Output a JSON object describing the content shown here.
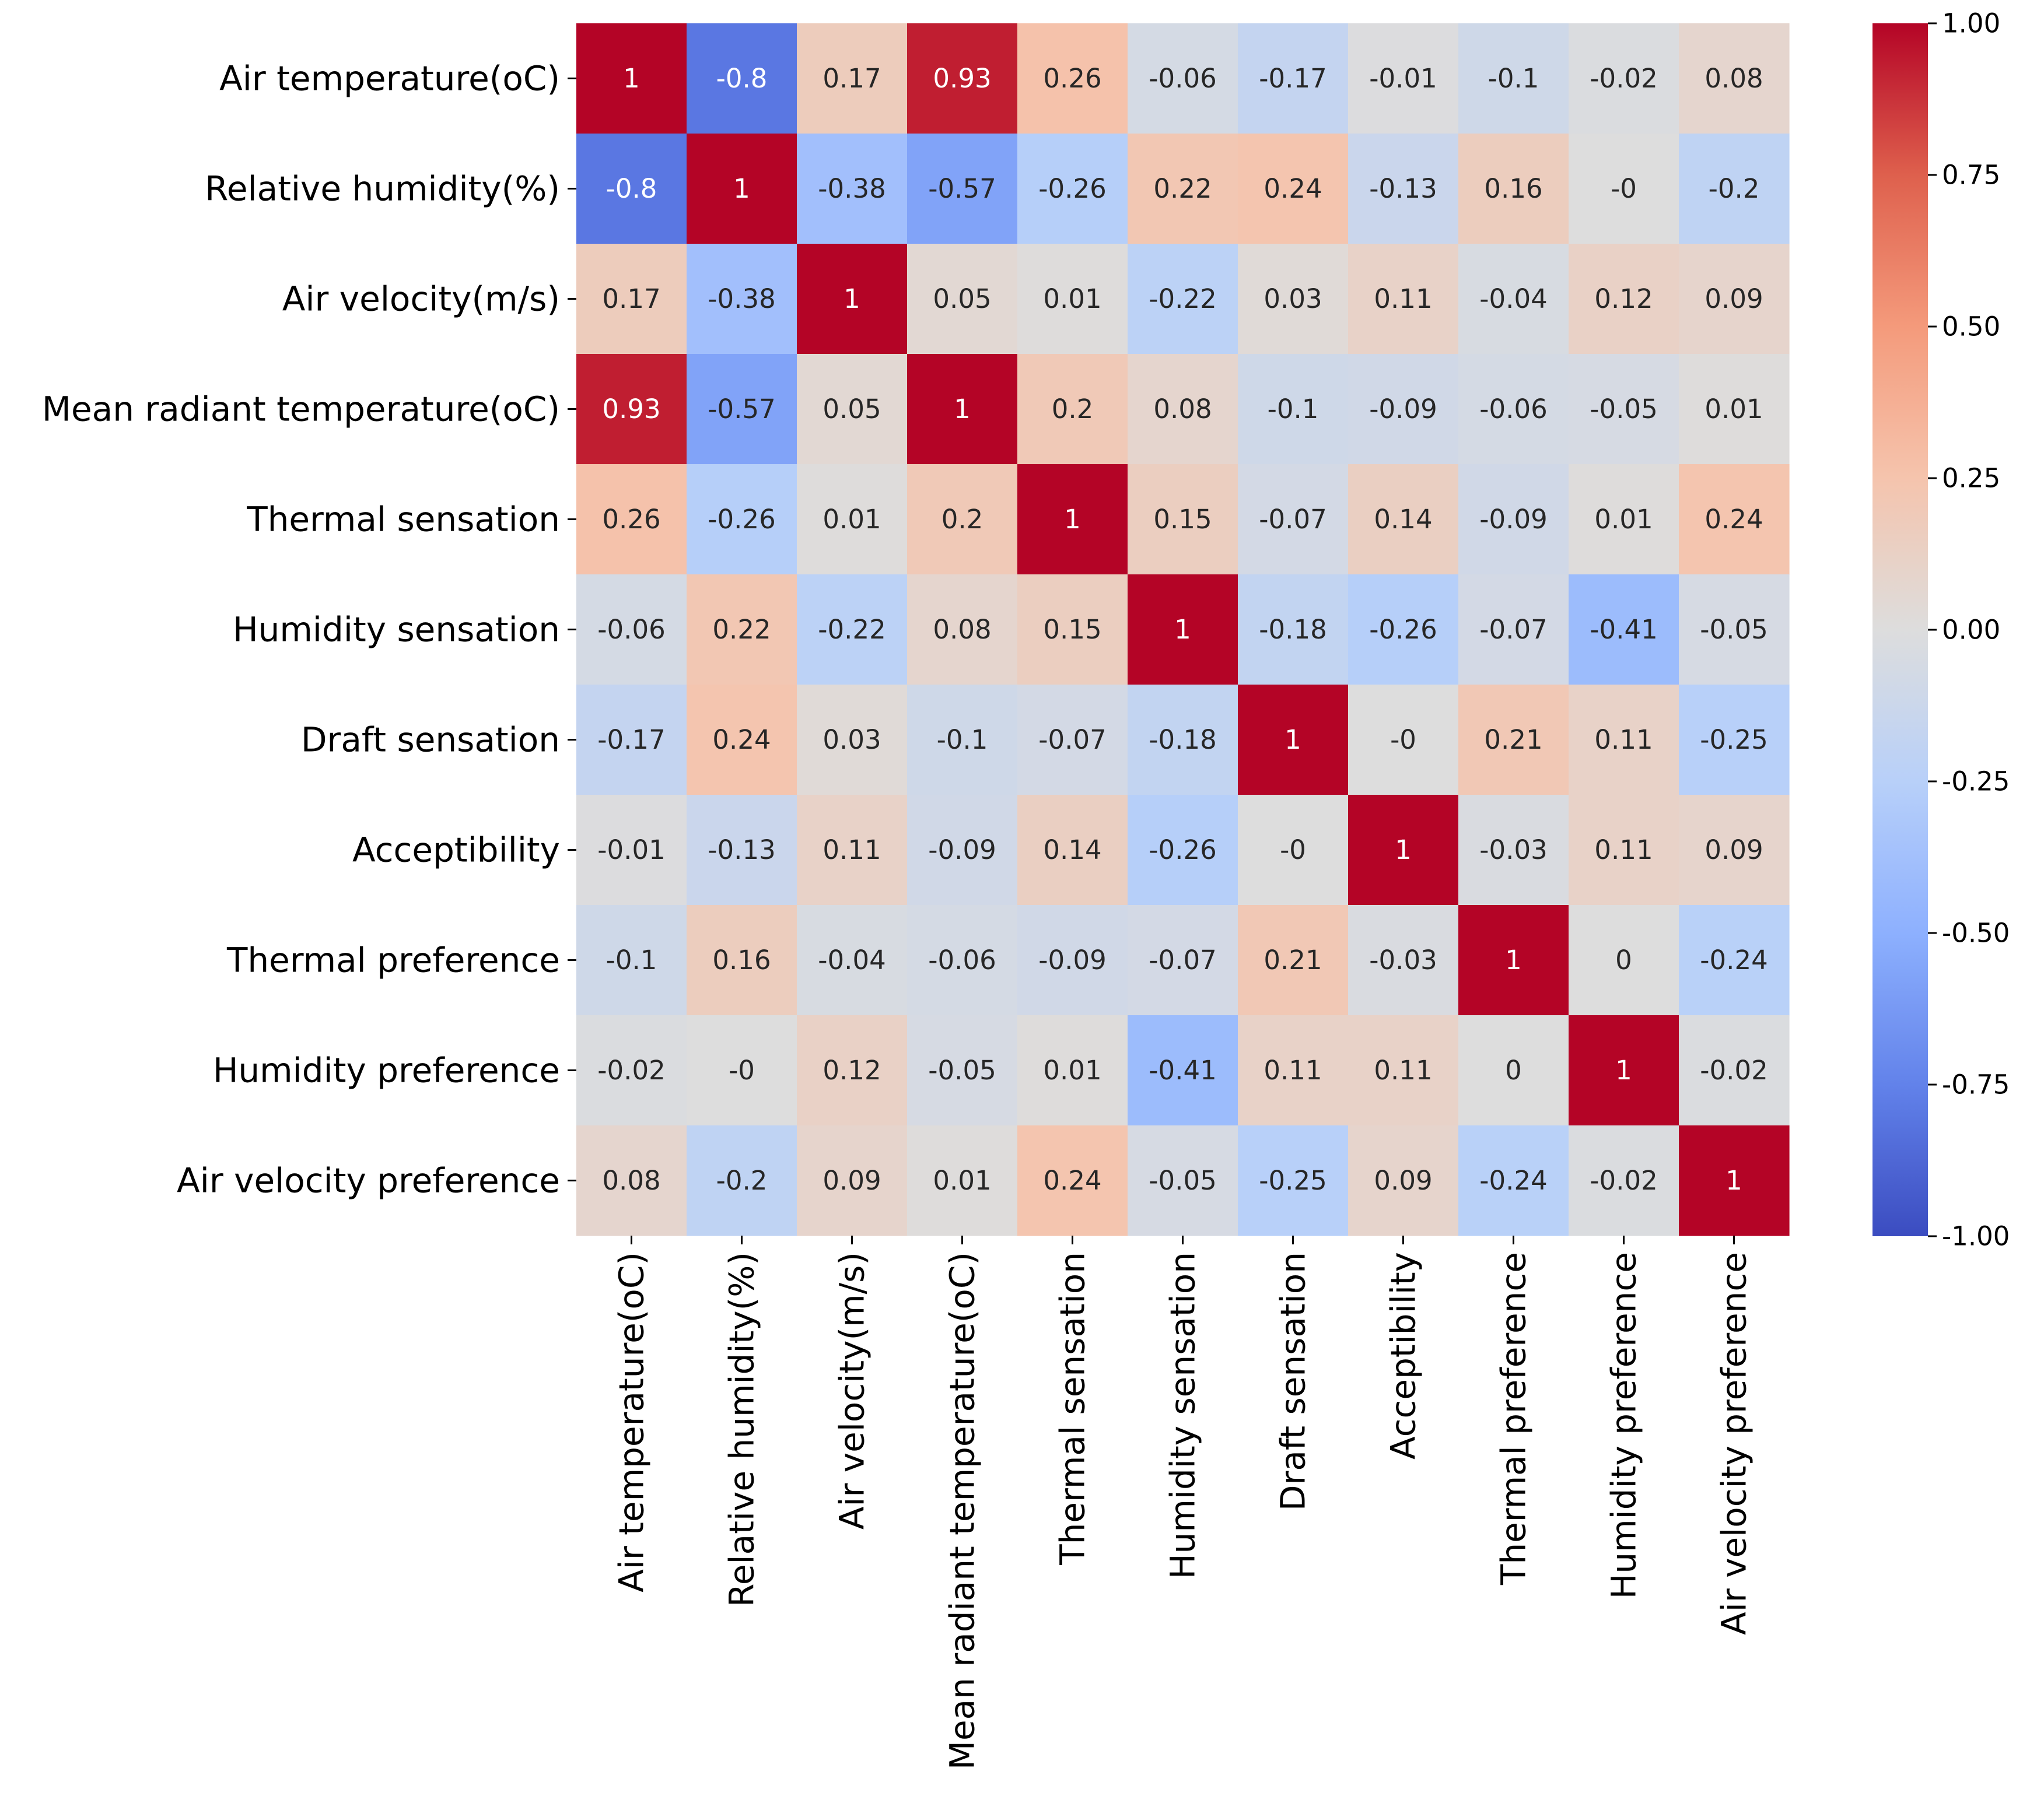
{
  "chart_data": {
    "type": "heatmap",
    "title": "",
    "xlabel": "",
    "ylabel": "",
    "labels": [
      "Air temperature(oC)",
      "Relative humidity(%)",
      "Air velocity(m/s)",
      "Mean radiant temperature(oC)",
      "Thermal sensation",
      "Humidity sensation",
      "Draft sensation",
      "Acceptibility",
      "Thermal preference",
      "Humidity preference",
      "Air velocity preference"
    ],
    "values": [
      [
        "1",
        "-0.8",
        "0.17",
        "0.93",
        "0.26",
        "-0.06",
        "-0.17",
        "-0.01",
        "-0.1",
        "-0.02",
        "0.08"
      ],
      [
        "-0.8",
        "1",
        "-0.38",
        "-0.57",
        "-0.26",
        "0.22",
        "0.24",
        "-0.13",
        "0.16",
        "-0",
        "-0.2"
      ],
      [
        "0.17",
        "-0.38",
        "1",
        "0.05",
        "0.01",
        "-0.22",
        "0.03",
        "0.11",
        "-0.04",
        "0.12",
        "0.09"
      ],
      [
        "0.93",
        "-0.57",
        "0.05",
        "1",
        "0.2",
        "0.08",
        "-0.1",
        "-0.09",
        "-0.06",
        "-0.05",
        "0.01"
      ],
      [
        "0.26",
        "-0.26",
        "0.01",
        "0.2",
        "1",
        "0.15",
        "-0.07",
        "0.14",
        "-0.09",
        "0.01",
        "0.24"
      ],
      [
        "-0.06",
        "0.22",
        "-0.22",
        "0.08",
        "0.15",
        "1",
        "-0.18",
        "-0.26",
        "-0.07",
        "-0.41",
        "-0.05"
      ],
      [
        "-0.17",
        "0.24",
        "0.03",
        "-0.1",
        "-0.07",
        "-0.18",
        "1",
        "-0",
        "0.21",
        "0.11",
        "-0.25"
      ],
      [
        "-0.01",
        "-0.13",
        "0.11",
        "-0.09",
        "0.14",
        "-0.26",
        "-0",
        "1",
        "-0.03",
        "0.11",
        "0.09"
      ],
      [
        "-0.1",
        "0.16",
        "-0.04",
        "-0.06",
        "-0.09",
        "-0.07",
        "0.21",
        "-0.03",
        "1",
        "0",
        "-0.24"
      ],
      [
        "-0.02",
        "-0",
        "0.12",
        "-0.05",
        "0.01",
        "-0.41",
        "0.11",
        "0.11",
        "0",
        "1",
        "-0.02"
      ],
      [
        "0.08",
        "-0.2",
        "0.09",
        "0.01",
        "0.24",
        "-0.05",
        "-0.25",
        "0.09",
        "-0.24",
        "-0.02",
        "1"
      ]
    ],
    "colormap": "coolwarm",
    "colorbar": {
      "range": [
        -1.0,
        1.0
      ],
      "ticks": [
        "1.00",
        "0.75",
        "0.50",
        "0.25",
        "0.00",
        "-0.25",
        "-0.50",
        "-0.75",
        "-1.00"
      ]
    },
    "grid": false,
    "legend": "colorbar-right"
  }
}
